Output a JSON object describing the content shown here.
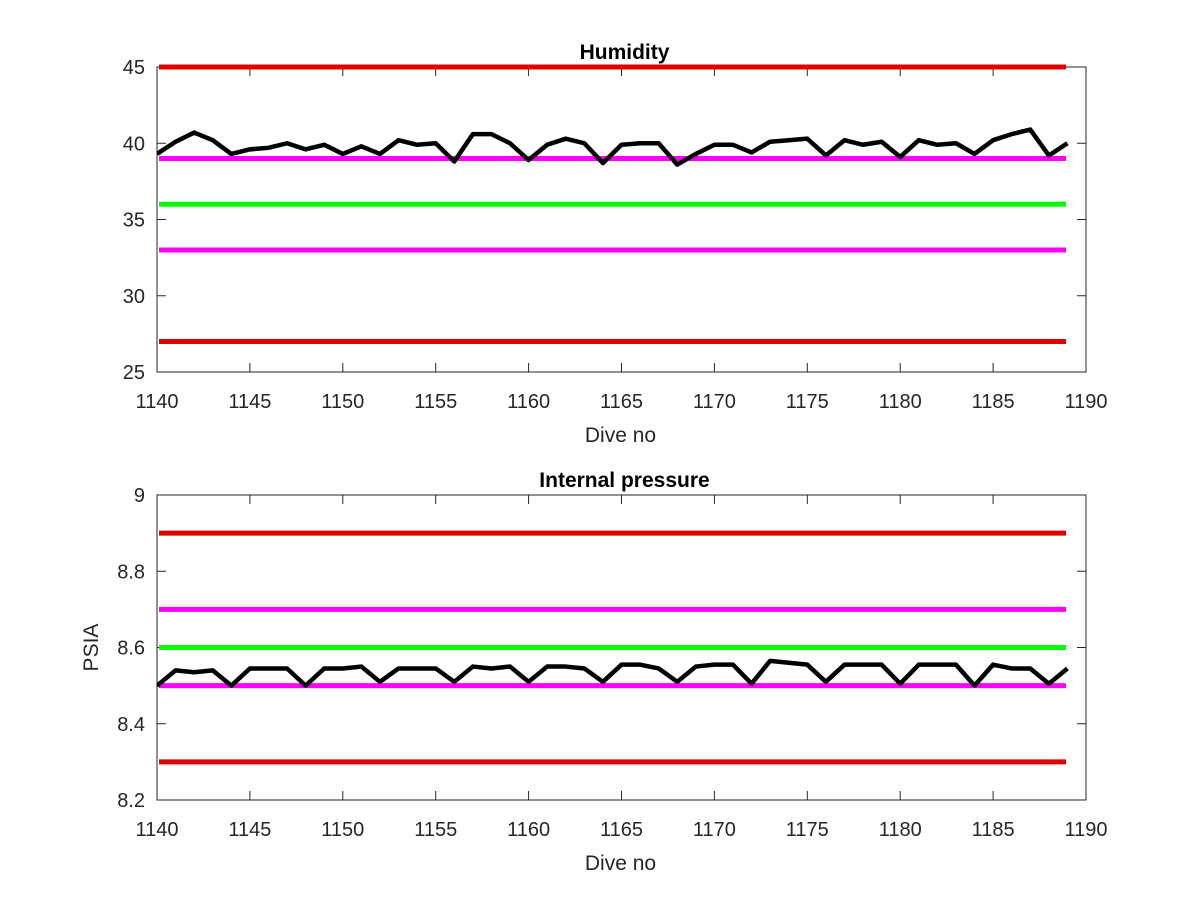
{
  "chart_data": [
    {
      "type": "line",
      "title": "Humidity",
      "xlabel": "Dive no",
      "ylabel": "",
      "xlim": [
        1140,
        1190
      ],
      "ylim": [
        25,
        45
      ],
      "xticks": [
        "1140",
        "1145",
        "1150",
        "1155",
        "1160",
        "1165",
        "1170",
        "1175",
        "1180",
        "1185",
        "1190"
      ],
      "yticks": [
        "25",
        "30",
        "35",
        "40",
        "45"
      ],
      "grid": false,
      "hlines": [
        {
          "y": 45,
          "color": "#e00000"
        },
        {
          "y": 39,
          "color": "#ff00ff"
        },
        {
          "y": 36,
          "color": "#00ff00"
        },
        {
          "y": 33,
          "color": "#ff00ff"
        },
        {
          "y": 27,
          "color": "#e00000"
        }
      ],
      "series": [
        {
          "color": "#000000",
          "x": [
            1140,
            1141,
            1142,
            1143,
            1144,
            1145,
            1146,
            1147,
            1148,
            1149,
            1150,
            1151,
            1152,
            1153,
            1154,
            1155,
            1156,
            1157,
            1158,
            1159,
            1160,
            1161,
            1162,
            1163,
            1164,
            1165,
            1166,
            1167,
            1168,
            1169,
            1170,
            1171,
            1172,
            1173,
            1174,
            1175,
            1176,
            1177,
            1178,
            1179,
            1180,
            1181,
            1182,
            1183,
            1184,
            1185,
            1186,
            1187,
            1188,
            1189
          ],
          "y": [
            39.3,
            40.1,
            40.7,
            40.2,
            39.3,
            39.6,
            39.7,
            40.0,
            39.6,
            39.9,
            39.3,
            39.8,
            39.3,
            40.2,
            39.9,
            40.0,
            38.8,
            40.6,
            40.6,
            40.0,
            38.9,
            39.9,
            40.3,
            40.0,
            38.7,
            39.9,
            40.0,
            40.0,
            38.6,
            39.3,
            39.9,
            39.9,
            39.4,
            40.1,
            40.2,
            40.3,
            39.2,
            40.2,
            39.9,
            40.1,
            39.1,
            40.2,
            39.9,
            40.0,
            39.3,
            40.2,
            40.6,
            40.9,
            39.2,
            40.0
          ]
        }
      ]
    },
    {
      "type": "line",
      "title": "Internal pressure",
      "xlabel": "Dive no",
      "ylabel": "PSIA",
      "xlim": [
        1140,
        1190
      ],
      "ylim": [
        8.2,
        9
      ],
      "xticks": [
        "1140",
        "1145",
        "1150",
        "1155",
        "1160",
        "1165",
        "1170",
        "1175",
        "1180",
        "1185",
        "1190"
      ],
      "yticks": [
        "8.2",
        "8.4",
        "8.6",
        "8.8",
        "9"
      ],
      "grid": false,
      "hlines": [
        {
          "y": 8.9,
          "color": "#e00000"
        },
        {
          "y": 8.7,
          "color": "#ff00ff"
        },
        {
          "y": 8.6,
          "color": "#00ff00"
        },
        {
          "y": 8.5,
          "color": "#ff00ff"
        },
        {
          "y": 8.3,
          "color": "#e00000"
        }
      ],
      "series": [
        {
          "color": "#000000",
          "x": [
            1140,
            1141,
            1142,
            1143,
            1144,
            1145,
            1146,
            1147,
            1148,
            1149,
            1150,
            1151,
            1152,
            1153,
            1154,
            1155,
            1156,
            1157,
            1158,
            1159,
            1160,
            1161,
            1162,
            1163,
            1164,
            1165,
            1166,
            1167,
            1168,
            1169,
            1170,
            1171,
            1172,
            1173,
            1174,
            1175,
            1176,
            1177,
            1178,
            1179,
            1180,
            1181,
            1182,
            1183,
            1184,
            1185,
            1186,
            1187,
            1188,
            1189
          ],
          "y": [
            8.5,
            8.54,
            8.535,
            8.54,
            8.5,
            8.545,
            8.545,
            8.545,
            8.5,
            8.545,
            8.545,
            8.55,
            8.51,
            8.545,
            8.545,
            8.545,
            8.51,
            8.55,
            8.545,
            8.55,
            8.51,
            8.55,
            8.55,
            8.545,
            8.51,
            8.555,
            8.555,
            8.545,
            8.51,
            8.55,
            8.555,
            8.555,
            8.505,
            8.565,
            8.56,
            8.555,
            8.51,
            8.555,
            8.555,
            8.555,
            8.505,
            8.555,
            8.555,
            8.555,
            8.5,
            8.555,
            8.545,
            8.545,
            8.505,
            8.545
          ]
        }
      ]
    }
  ]
}
